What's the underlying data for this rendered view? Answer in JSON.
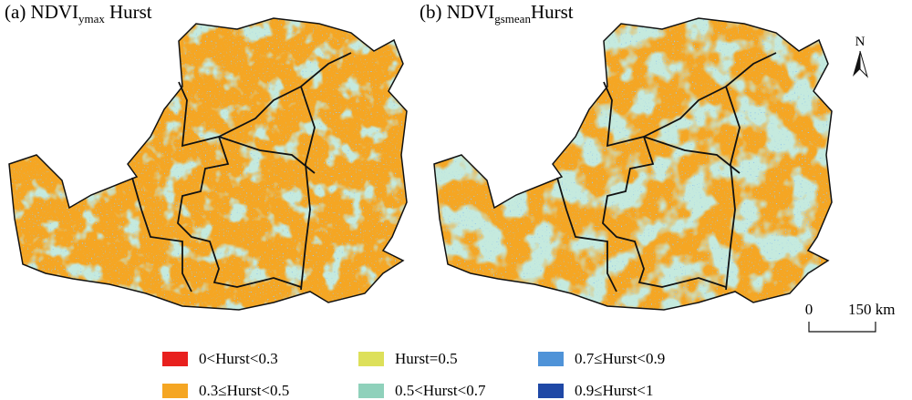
{
  "panels": [
    {
      "label": "(a) NDVI",
      "subscript": "ymax",
      "suffix": "Hurst"
    },
    {
      "label": "(b) NDVI",
      "subscript": "gsmean",
      "suffix": "Hurst"
    }
  ],
  "north": "N",
  "scale_bar": {
    "start": "0",
    "end": "150 km"
  },
  "legend": [
    {
      "label": "0<Hurst<0.3",
      "color": "#e8201e"
    },
    {
      "label": "0.3≤Hurst<0.5",
      "color": "#f5a623"
    },
    {
      "label": "Hurst=0.5",
      "color": "#dde05a"
    },
    {
      "label": "0.5<Hurst<0.7",
      "color": "#8fd1bb"
    },
    {
      "label": "0.7≤Hurst<0.9",
      "color": "#4f93d8"
    },
    {
      "label": "0.9≤Hurst<1",
      "color": "#1f48a6"
    }
  ]
}
